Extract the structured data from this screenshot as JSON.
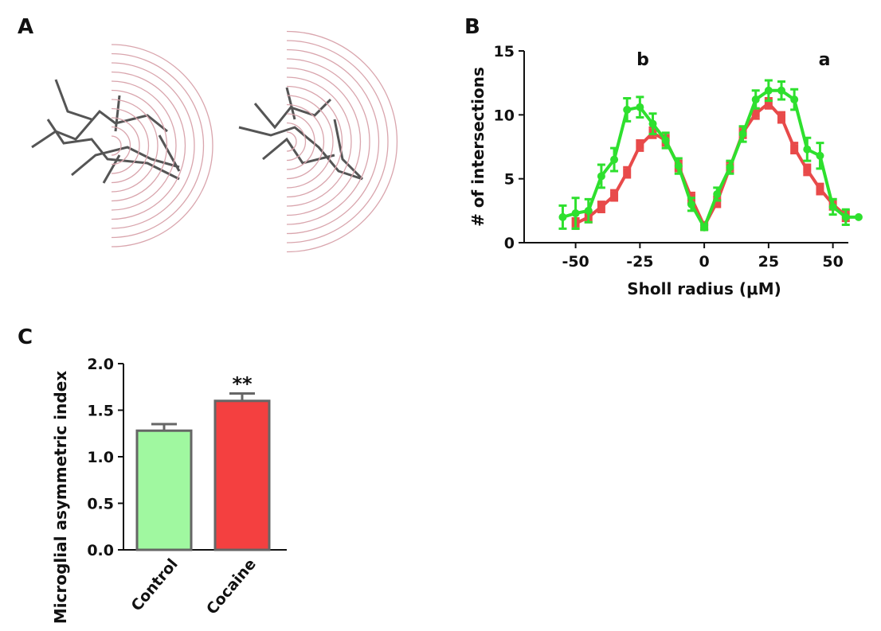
{
  "chart_data": [
    {
      "type": "image",
      "label": "A"
    },
    {
      "type": "line",
      "label": "B",
      "x_label": "Sholl radius (μM)",
      "y_label": "# of intersections",
      "annotations": [
        "b",
        "a"
      ],
      "x": [
        -55,
        -50,
        -45,
        -40,
        -35,
        -30,
        -25,
        -20,
        -15,
        -10,
        -5,
        0,
        5,
        10,
        15,
        20,
        25,
        30,
        35,
        40,
        45,
        50,
        55,
        60
      ],
      "xlim": [
        -70,
        56
      ],
      "xticks": [
        -50,
        -25,
        0,
        25,
        50
      ],
      "ylim": [
        0,
        15
      ],
      "yticks": [
        0,
        5,
        10,
        15
      ],
      "series": [
        {
          "color": "#e84a4a",
          "marker": "square",
          "values": [
            null,
            1.5,
            2.0,
            2.8,
            3.7,
            5.5,
            7.6,
            8.6,
            8.0,
            6.0,
            3.5,
            1.3,
            3.2,
            5.9,
            8.6,
            10.1,
            10.9,
            9.8,
            7.4,
            5.7,
            4.2,
            3.0,
            2.1,
            null
          ],
          "errors": [
            null,
            0.4,
            0.4,
            0.4,
            0.4,
            0.4,
            0.4,
            0.4,
            0.4,
            0.4,
            0.4,
            0.3,
            0.4,
            0.4,
            0.4,
            0.4,
            0.4,
            0.4,
            0.4,
            0.4,
            0.4,
            0.4,
            0.4,
            null
          ]
        },
        {
          "color": "#2ee02e",
          "marker": "circle",
          "values": [
            2.0,
            2.3,
            2.5,
            5.2,
            6.5,
            10.4,
            10.6,
            9.3,
            8.0,
            6.0,
            3.0,
            1.2,
            3.8,
            5.9,
            8.5,
            11.2,
            11.9,
            11.9,
            11.2,
            7.3,
            6.8,
            2.8,
            2.0,
            2.0
          ],
          "errors": [
            0.9,
            1.2,
            0.9,
            0.9,
            0.9,
            0.9,
            0.8,
            0.8,
            0.6,
            0.6,
            0.5,
            0.2,
            0.5,
            0.5,
            0.6,
            0.7,
            0.8,
            0.7,
            0.8,
            0.9,
            1.0,
            0.6,
            0.6,
            null
          ]
        }
      ]
    },
    {
      "type": "bar",
      "label": "C",
      "y_label": "Microglial asymmetric index",
      "categories": [
        "Control",
        "Cocaine"
      ],
      "values": [
        1.28,
        1.6
      ],
      "errors": [
        0.07,
        0.08
      ],
      "colors": [
        "#a0f8a0",
        "#f44040"
      ],
      "annotations": [
        "",
        "**"
      ],
      "ylim": [
        0,
        2
      ],
      "yticks": [
        {
          "value": 0,
          "label": "0.0"
        },
        {
          "value": 0.5,
          "label": "0.5"
        },
        {
          "value": 1,
          "label": "1.0"
        },
        {
          "value": 1.5,
          "label": "1.5"
        },
        {
          "value": 2,
          "label": "2.0"
        }
      ]
    }
  ]
}
